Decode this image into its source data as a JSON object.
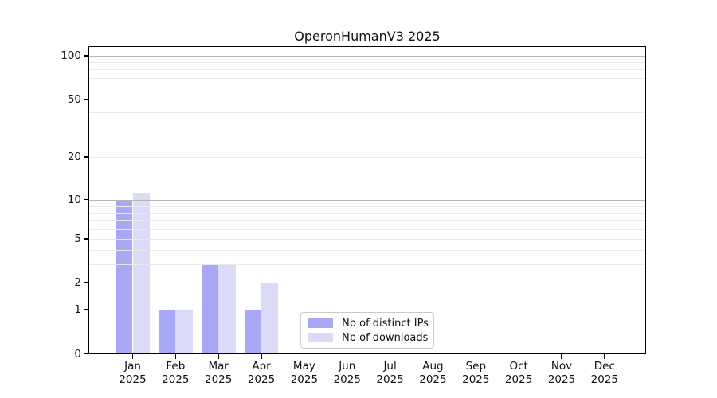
{
  "chart_data": {
    "type": "bar",
    "title": "OperonHumanV3 2025",
    "xlabel": "",
    "ylabel": "",
    "yscale": "log-like (symlog, 0 baseline)",
    "ylim": [
      0,
      100
    ],
    "y_tick_labels": [
      0,
      1,
      2,
      5,
      10,
      20,
      50,
      100
    ],
    "y_major_gridlines": [
      1,
      10,
      100
    ],
    "y_minor_gridlines": [
      2,
      3,
      4,
      5,
      6,
      7,
      8,
      9,
      20,
      30,
      40,
      50,
      60,
      70,
      80,
      90
    ],
    "grid": "horizontal, major darker + minor lighter, drawn over bars",
    "legend_position": "inside bottom-center",
    "categories": [
      "Jan 2025",
      "Feb 2025",
      "Mar 2025",
      "Apr 2025",
      "May 2025",
      "Jun 2025",
      "Jul 2025",
      "Aug 2025",
      "Sep 2025",
      "Oct 2025",
      "Nov 2025",
      "Dec 2025"
    ],
    "series": [
      {
        "name": "Nb of distinct IPs",
        "color": "#a8a8f4",
        "values": [
          10,
          1,
          3,
          1,
          0,
          0,
          0,
          0,
          0,
          0,
          0,
          0
        ]
      },
      {
        "name": "Nb of downloads",
        "color": "#dbdbf8",
        "values": [
          11,
          1,
          3,
          2,
          0,
          0,
          0,
          0,
          0,
          0,
          0,
          0
        ]
      }
    ],
    "colors": {
      "major_grid": "#b6b6b6",
      "minor_grid": "#e9e9e9",
      "spine": "#000000",
      "text": "#111111",
      "background": "#ffffff"
    }
  }
}
